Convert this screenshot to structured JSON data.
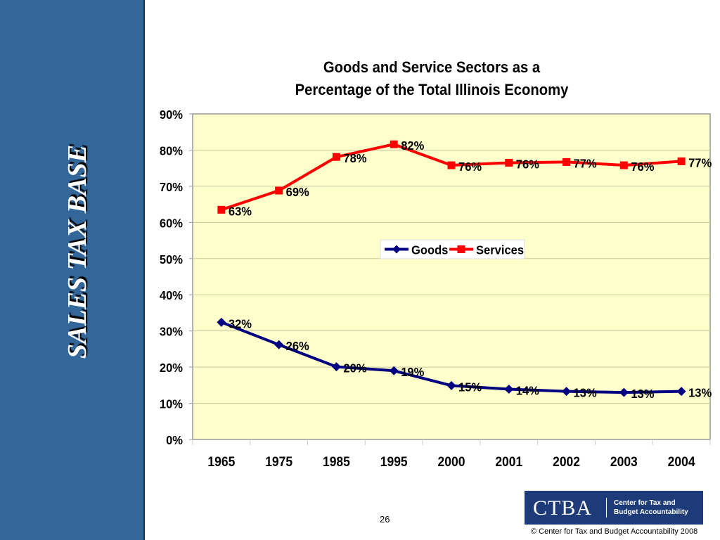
{
  "sidebar": {
    "title": "SALES TAX BASE",
    "color": "#336699"
  },
  "page_number": "26",
  "logo": {
    "mark": "CTBA",
    "line1": "Center for Tax and",
    "line2": "Budget Accountability"
  },
  "copyright": "©  Center for Tax and Budget Accountability 2008",
  "chart_data": {
    "type": "line",
    "title": "Goods and Service Sectors as a",
    "title_line2": "Percentage of the Total Illinois Economy",
    "xlabel": "",
    "ylabel": "",
    "categories": [
      "1965",
      "1975",
      "1985",
      "1995",
      "2000",
      "2001",
      "2002",
      "2003",
      "2004"
    ],
    "ylim": [
      0,
      90
    ],
    "yticks": [
      "0%",
      "10%",
      "20%",
      "30%",
      "40%",
      "50%",
      "60%",
      "70%",
      "80%",
      "90%"
    ],
    "grid": true,
    "legend_position": "center",
    "series": [
      {
        "name": "Goods",
        "color": "#000080",
        "marker": "diamond",
        "values": [
          32.4,
          26.2,
          20.1,
          19.0,
          14.9,
          13.9,
          13.3,
          13.0,
          13.3
        ],
        "labels": [
          "32%",
          "26%",
          "20%",
          "19%",
          "15%",
          "14%",
          "13%",
          "13%",
          "13%"
        ]
      },
      {
        "name": "Services",
        "color": "#ff0000",
        "marker": "square",
        "values": [
          63.5,
          68.8,
          78.1,
          81.6,
          75.8,
          76.5,
          76.7,
          75.8,
          76.9
        ],
        "labels": [
          "63%",
          "69%",
          "78%",
          "82%",
          "76%",
          "76%",
          "77%",
          "76%",
          "77%"
        ]
      }
    ],
    "plot_background": "#ffffcc"
  }
}
